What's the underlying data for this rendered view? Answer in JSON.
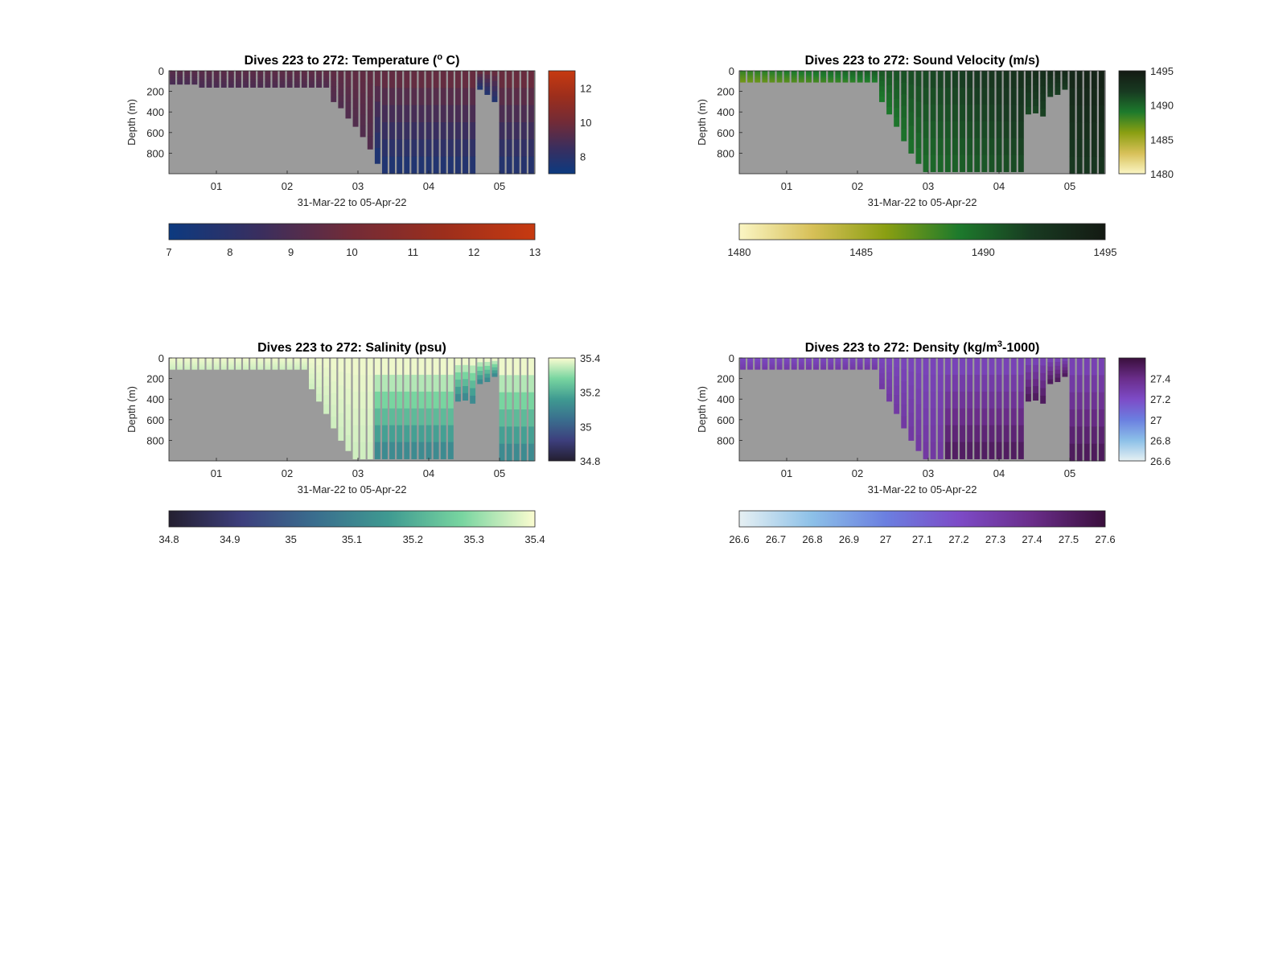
{
  "chart_data": [
    {
      "type": "heatmap",
      "title": "Dives 223 to 272: Temperature (°C)",
      "title_parts": [
        "Dives 223 to 272: Temperature (",
        "o",
        " C)"
      ],
      "xlabel": "31-Mar-22 to 05-Apr-22",
      "ylabel": "Depth (m)",
      "x_ticks": [
        "01",
        "02",
        "03",
        "04",
        "05"
      ],
      "y_ticks": [
        "0",
        "200",
        "400",
        "600",
        "800"
      ],
      "xlim": [
        -0.67,
        4.5
      ],
      "ylim": [
        0,
        1000
      ],
      "colorbar_label_ticks": [
        "8",
        "10",
        "12"
      ],
      "colorbar_ticks": [
        "7",
        "8",
        "9",
        "10",
        "11",
        "12",
        "13"
      ],
      "color_range": [
        7,
        13
      ],
      "colormap": [
        "#0c3a80",
        "#3a2e5e",
        "#722b37",
        "#9c2e1c",
        "#c73a10"
      ],
      "surface_value": 9.2,
      "deep_value": 8.2,
      "dive_max_depth": [
        130,
        130,
        130,
        130,
        160,
        160,
        160,
        160,
        160,
        160,
        160,
        160,
        160,
        160,
        160,
        160,
        160,
        160,
        160,
        160,
        160,
        160,
        300,
        360,
        460,
        540,
        640,
        760,
        900,
        1000,
        1000,
        1000,
        1000,
        1000,
        1000,
        1000,
        1000,
        1000,
        1000,
        1000,
        1000,
        1000,
        180,
        230,
        300,
        1000,
        1000,
        1000,
        1000,
        1000
      ],
      "grey_profile": [
        130,
        130,
        130,
        130,
        160,
        160,
        160,
        160,
        160,
        160,
        160,
        160,
        160,
        160,
        160,
        160,
        160,
        160,
        160,
        160,
        160,
        160,
        300,
        360,
        460,
        540,
        640,
        760,
        900,
        1000,
        1000,
        1000,
        1000,
        1000,
        1000,
        1000,
        1000,
        1000,
        1000,
        1000,
        1000,
        1000,
        180,
        230,
        300,
        1000,
        1000,
        1000,
        1000,
        1000
      ]
    },
    {
      "type": "heatmap",
      "title": "Dives 223 to 272: Sound Velocity (m/s)",
      "xlabel": "31-Mar-22 to 05-Apr-22",
      "ylabel": "Depth (m)",
      "x_ticks": [
        "01",
        "02",
        "03",
        "04",
        "05"
      ],
      "y_ticks": [
        "0",
        "200",
        "400",
        "600",
        "800"
      ],
      "colorbar_label_ticks": [
        "1480",
        "1485",
        "1490",
        "1495"
      ],
      "colorbar_ticks": [
        "1480",
        "1485",
        "1490",
        "1495"
      ],
      "color_range": [
        1480,
        1495
      ],
      "colormap": [
        "#fbf6c4",
        "#d7c058",
        "#8a9f12",
        "#1d7a2c",
        "#183a21",
        "#141a13"
      ],
      "dive_max_depth": [
        110,
        110,
        110,
        110,
        110,
        110,
        110,
        110,
        110,
        110,
        110,
        110,
        110,
        110,
        110,
        110,
        110,
        110,
        110,
        300,
        420,
        540,
        680,
        800,
        900,
        980,
        980,
        980,
        980,
        980,
        980,
        980,
        980,
        980,
        980,
        980,
        980,
        980,
        980,
        420,
        410,
        440,
        250,
        230,
        180,
        1000,
        1000,
        1000,
        1000,
        1000
      ]
    },
    {
      "type": "heatmap",
      "title": "Dives 223 to 272: Salinity (psu)",
      "xlabel": "31-Mar-22 to 05-Apr-22",
      "ylabel": "Depth (m)",
      "x_ticks": [
        "01",
        "02",
        "03",
        "04",
        "05"
      ],
      "y_ticks": [
        "0",
        "200",
        "400",
        "600",
        "800"
      ],
      "colorbar_label_ticks": [
        "34.8",
        "35",
        "35.2",
        "35.4"
      ],
      "colorbar_ticks": [
        "34.8",
        "34.9",
        "35",
        "35.1",
        "35.2",
        "35.3",
        "35.4"
      ],
      "color_range": [
        34.8,
        35.4
      ],
      "colormap": [
        "#241f30",
        "#3d3f7d",
        "#3a6e8e",
        "#3f9a91",
        "#78d5a0",
        "#fbfcd0"
      ],
      "dive_max_depth": [
        110,
        110,
        110,
        110,
        110,
        110,
        110,
        110,
        110,
        110,
        110,
        110,
        110,
        110,
        110,
        110,
        110,
        110,
        110,
        300,
        420,
        540,
        680,
        800,
        900,
        980,
        980,
        980,
        980,
        980,
        980,
        980,
        980,
        980,
        980,
        980,
        980,
        980,
        980,
        420,
        410,
        440,
        250,
        230,
        180,
        1000,
        1000,
        1000,
        1000,
        1000
      ]
    },
    {
      "type": "heatmap",
      "title": "Dives 223 to 272: Density (kg/m³-1000)",
      "title_parts": [
        "Dives 223 to 272: Density (kg/m",
        "3",
        "-1000)"
      ],
      "xlabel": "31-Mar-22 to 05-Apr-22",
      "ylabel": "Depth (m)",
      "x_ticks": [
        "01",
        "02",
        "03",
        "04",
        "05"
      ],
      "y_ticks": [
        "0",
        "200",
        "400",
        "600",
        "800"
      ],
      "colorbar_label_ticks": [
        "26.6",
        "26.8",
        "27",
        "27.2",
        "27.4"
      ],
      "colorbar_ticks": [
        "26.6",
        "26.7",
        "26.8",
        "26.9",
        "27",
        "27.1",
        "27.2",
        "27.3",
        "27.4",
        "27.5",
        "27.6"
      ],
      "color_range": [
        26.6,
        27.6
      ],
      "colormap": [
        "#e6f0f3",
        "#8cc0e8",
        "#6b7fe0",
        "#7d4bc7",
        "#6a2d8a",
        "#3a0f3c"
      ],
      "dive_max_depth": [
        110,
        110,
        110,
        110,
        110,
        110,
        110,
        110,
        110,
        110,
        110,
        110,
        110,
        110,
        110,
        110,
        110,
        110,
        110,
        300,
        420,
        540,
        680,
        800,
        900,
        980,
        980,
        980,
        980,
        980,
        980,
        980,
        980,
        980,
        980,
        980,
        980,
        980,
        980,
        420,
        410,
        440,
        250,
        230,
        180,
        1000,
        1000,
        1000,
        1000,
        1000
      ]
    }
  ]
}
